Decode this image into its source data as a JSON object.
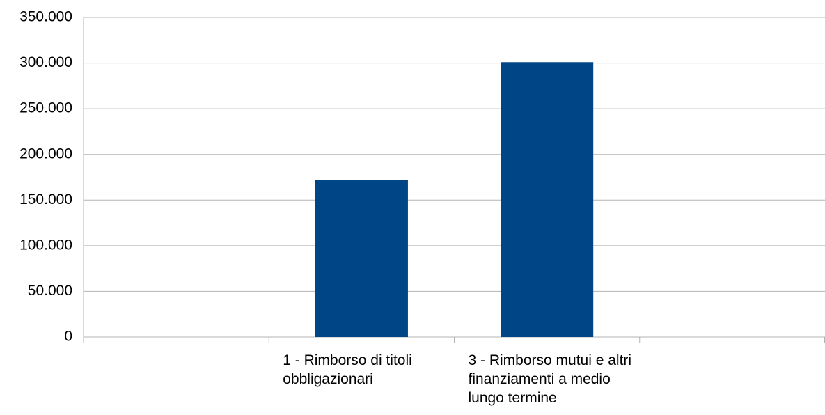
{
  "chart_data": {
    "type": "bar",
    "categories": [
      null,
      "1 - Rimborso di titoli obbligazionari",
      "3 - Rimborso mutui e altri finanziamenti a medio lungo termine",
      null
    ],
    "values": [
      null,
      172000,
      301000,
      null
    ],
    "color": "#004586",
    "ylim": [
      0,
      350000
    ],
    "yticks": [
      0,
      {
        "value": 50000,
        "label": "50.000"
      },
      {
        "value": 100000,
        "label": "100.000"
      },
      {
        "value": 150000,
        "label": "150.000"
      },
      {
        "value": 200000,
        "label": "200.000"
      },
      {
        "value": 250000,
        "label": "250.000"
      },
      {
        "value": 300000,
        "label": "300.000"
      },
      {
        "value": 350000,
        "label": "350.000"
      }
    ],
    "grid": true
  }
}
